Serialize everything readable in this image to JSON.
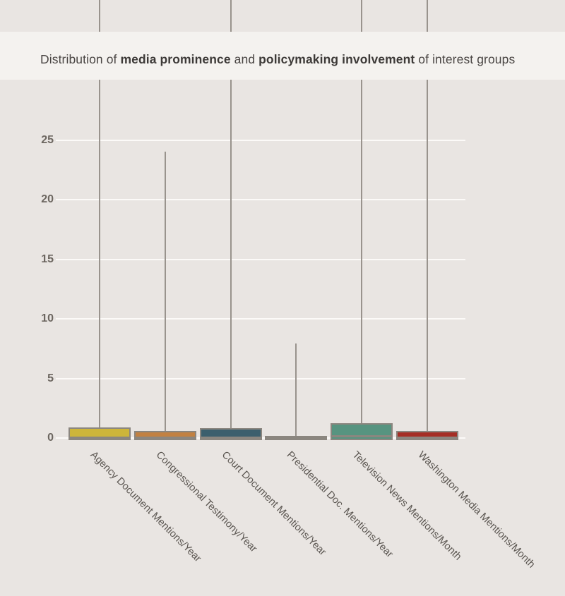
{
  "title_segments": [
    {
      "text": "Distribution of ",
      "bold": false
    },
    {
      "text": "media prominence",
      "bold": true
    },
    {
      "text": " and ",
      "bold": false
    },
    {
      "text": "policymaking involvement",
      "bold": true
    },
    {
      "text": " of interest groups",
      "bold": false
    }
  ],
  "chart_data": {
    "type": "boxplot",
    "title": "Distribution of media prominence and policymaking involvement of interest groups",
    "ylabel": "",
    "xlabel": "",
    "y_ticks": [
      0,
      5,
      10,
      15,
      20,
      25
    ],
    "ylim_visible": [
      0,
      36.5
    ],
    "grid": "horizontal-white",
    "legend": "none",
    "note": "Upper whiskers for four of six groups extend past the top of the visible axis (clipped). All boxes sit on zero; medians are at or near zero.",
    "series": [
      {
        "label": "Agency Document Mentions/Year",
        "color": "#cdb53a",
        "whisker_low": 0,
        "q1": 0,
        "median": 0.05,
        "q3": 0.75,
        "whisker_high": null,
        "clipped_at_top": true
      },
      {
        "label": "Congressional Testimony/Year",
        "color": "#c28142",
        "whisker_low": 0,
        "q1": 0,
        "median": 0.03,
        "q3": 0.45,
        "whisker_high": 24,
        "clipped_at_top": false
      },
      {
        "label": "Court Document Mentions/Year",
        "color": "#3c5f6d",
        "whisker_low": 0,
        "q1": 0,
        "median": 0.05,
        "q3": 0.72,
        "whisker_high": null,
        "clipped_at_top": true
      },
      {
        "label": "Presidential Doc. Mentions/Year",
        "color": "#9b958e",
        "whisker_low": 0,
        "q1": 0,
        "median": 0.0,
        "q3": 0.05,
        "whisker_high": 7.9,
        "clipped_at_top": false
      },
      {
        "label": "Television News Mentions/Month",
        "color": "#579480",
        "whisker_low": 0,
        "q1": 0,
        "median": 0.18,
        "q3": 1.1,
        "whisker_high": null,
        "clipped_at_top": true
      },
      {
        "label": "Washington Media Mentions/Month",
        "color": "#a52e25",
        "whisker_low": 0,
        "q1": 0,
        "median": 0.05,
        "q3": 0.5,
        "whisker_high": null,
        "clipped_at_top": true
      }
    ]
  }
}
